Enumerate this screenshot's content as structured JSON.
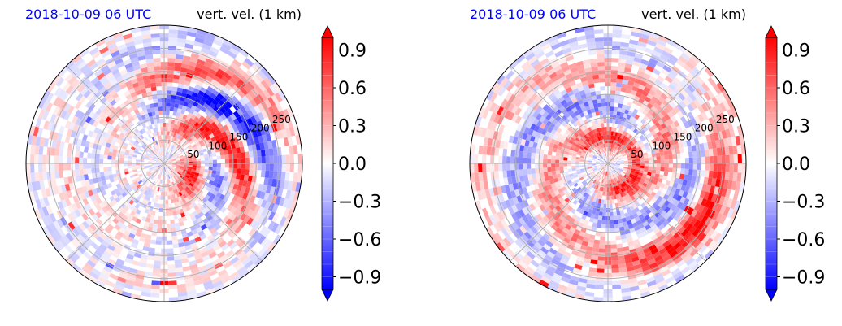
{
  "chart_data": [
    {
      "type": "heatmap",
      "projection": "polar",
      "title_left": "2018-10-09 06 UTC",
      "title_right": "vert. vel. (1 km)",
      "title_left_color": "#0000ff",
      "radial_ticks": [
        "50",
        "100",
        "150",
        "200",
        "250"
      ],
      "radial_range": [
        0,
        300
      ],
      "grid": true,
      "pattern": "asymmetric-northeast-rainbands",
      "colorbar": {
        "ticks": [
          "0.9",
          "0.6",
          "0.3",
          "0.0",
          "−0.3",
          "−0.6",
          "−0.9"
        ],
        "range": [
          -1.0,
          1.0
        ],
        "extend": "both",
        "colors": [
          "#0000ff",
          "#ffffff",
          "#ff0000"
        ]
      }
    },
    {
      "type": "heatmap",
      "projection": "polar",
      "title_left": "2018-10-09 06 UTC",
      "title_right": "vert. vel. (1 km)",
      "title_left_color": "#0000ff",
      "radial_ticks": [
        "50",
        "100",
        "150",
        "200",
        "250"
      ],
      "radial_range": [
        0,
        300
      ],
      "grid": true,
      "pattern": "spiral-symmetric-eyewall",
      "colorbar": {
        "ticks": [
          "0.9",
          "0.6",
          "0.3",
          "0.0",
          "−0.3",
          "−0.6",
          "−0.9"
        ],
        "range": [
          -1.0,
          1.0
        ],
        "extend": "both",
        "colors": [
          "#0000ff",
          "#ffffff",
          "#ff0000"
        ]
      }
    }
  ]
}
